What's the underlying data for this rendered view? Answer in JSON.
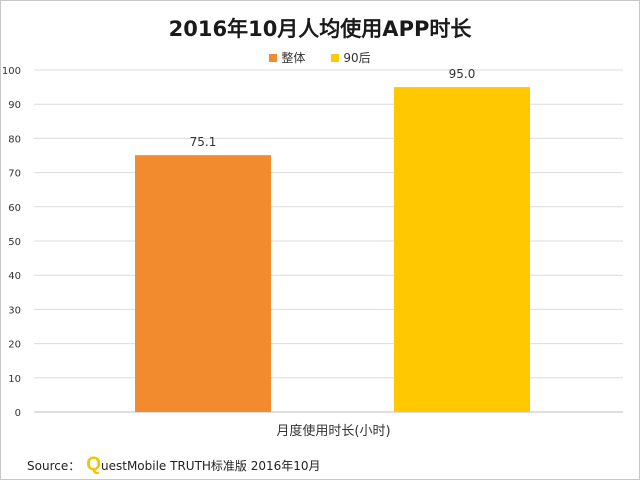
{
  "chart_data": {
    "type": "bar",
    "title": "2016年10月人均使用APP时长",
    "categories": [
      "月度使用时长(小时)"
    ],
    "series": [
      {
        "name": "整体",
        "values": [
          75.1
        ],
        "color": "#f28a2e"
      },
      {
        "name": "90后",
        "values": [
          95.0
        ],
        "color": "#ffc800"
      }
    ],
    "data_labels": [
      "75.1",
      "95.0"
    ],
    "xlabel": "月度使用时长(小时)",
    "ylabel": "",
    "ylim": [
      0,
      100
    ],
    "yticks": [
      0,
      10,
      20,
      30,
      40,
      50,
      60,
      70,
      80,
      90,
      100
    ],
    "grid": true,
    "legend_position": "top-center"
  },
  "source": {
    "label": "Source：",
    "brand_initial": "Q",
    "text": "uestMobile TRUTH标准版 2016年10月"
  }
}
